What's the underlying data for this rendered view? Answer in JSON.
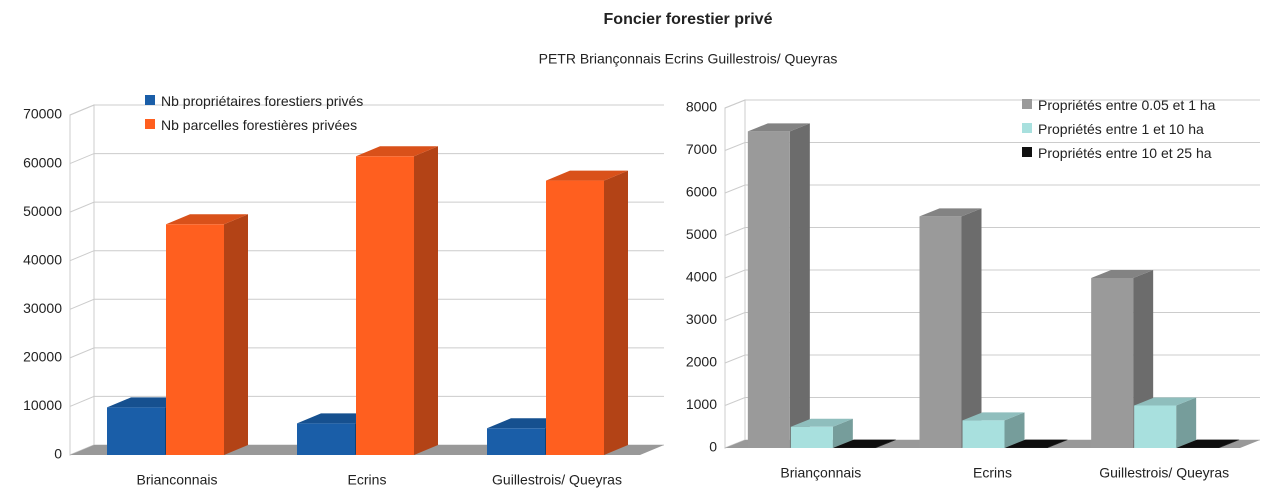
{
  "title": "Foncier forestier privé",
  "subtitle": "PETR Briançonnais Ecrins Guillestrois/ Queyras",
  "chart_data": [
    {
      "type": "bar3d",
      "categories": [
        "Brianconnais",
        "Ecrins",
        "Guillestrois/ Queyras"
      ],
      "series": [
        {
          "name": "Nb propriétaires forestiers privés",
          "color": "#1a5ea8",
          "values": [
            9800,
            6500,
            5500
          ]
        },
        {
          "name": "Nb parcelles forestières privées",
          "color": "#ff5f1f",
          "values": [
            47500,
            61500,
            56500
          ]
        }
      ],
      "ylim": [
        0,
        70000
      ],
      "yticks": [
        0,
        10000,
        20000,
        30000,
        40000,
        50000,
        60000,
        70000
      ],
      "grid": true,
      "legend": "top-left"
    },
    {
      "type": "bar3d",
      "categories": [
        "Briançonnais",
        "Ecrins",
        "Guillestrois/ Queyras"
      ],
      "series": [
        {
          "name": "Propriétés entre 0.05 et 1 ha",
          "color": "#9a9a9a",
          "values": [
            7450,
            5450,
            4000
          ]
        },
        {
          "name": "Propriétés entre 1 et 10 ha",
          "color": "#a8e0de",
          "values": [
            500,
            650,
            1000
          ]
        },
        {
          "name": "Propriétés entre 10 et 25 ha",
          "color": "#111111",
          "values": [
            10,
            10,
            10
          ]
        }
      ],
      "ylim": [
        0,
        8000
      ],
      "yticks": [
        0,
        1000,
        2000,
        3000,
        4000,
        5000,
        6000,
        7000,
        8000
      ],
      "grid": true,
      "legend": "top-right"
    }
  ]
}
